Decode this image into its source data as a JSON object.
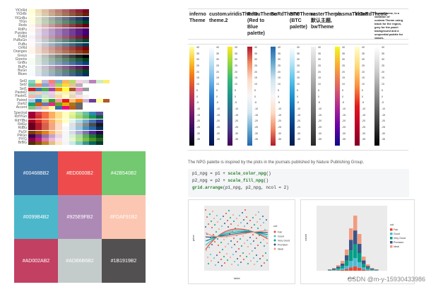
{
  "palettes": {
    "sequential": [
      "YlOrRd",
      "YlOrBr",
      "YlGnBu",
      "YlGn",
      "Reds",
      "RdPu",
      "Purples",
      "PuRd",
      "PuBuGn",
      "PuBu",
      "OrRd",
      "Oranges",
      "Greys",
      "Greens",
      "GnBu",
      "BuPu",
      "BuGn",
      "Blues"
    ],
    "qualitative": [
      "Set3",
      "Set2",
      "Set1",
      "Pastel2",
      "Pastel1",
      "Paired",
      "Dark2",
      "Accent"
    ],
    "diverging": [
      "Spectral",
      "RdYlGn",
      "RdYlBu",
      "RdGy",
      "RdBu",
      "PuOr",
      "PRGn",
      "PiYG",
      "BrBG"
    ]
  },
  "swatches": [
    {
      "label": "#00468BB2",
      "color": "#3d6fa3"
    },
    {
      "label": "#ED0000B2",
      "color": "#ee4c4c"
    },
    {
      "label": "#42B540B2",
      "color": "#72c970"
    },
    {
      "label": "#0099B4B2",
      "color": "#4cb7ca"
    },
    {
      "label": "#925E9FB2",
      "color": "#ad8ab6"
    },
    {
      "label": "#FDAF91B2",
      "color": "#fcc7b2"
    },
    {
      "label": "#AD002AB2",
      "color": "#c24062"
    },
    {
      "label": "#ADB6B6B2",
      "color": "#c4cbcb"
    },
    {
      "label": "#1B1919B2",
      "color": "#525050"
    }
  ],
  "themes": [
    {
      "name": "inferno Theme",
      "colors": [
        "#fcffa4",
        "#f9c932",
        "#f57d15",
        "#d44842",
        "#9f2a63",
        "#65156e",
        "#280b54",
        "#000004"
      ]
    },
    {
      "name": "custom. theme.2",
      "colors": [
        "#ffffff",
        "#bde0f5",
        "#72b7e8",
        "#2e7fd0",
        "#1a4fa8",
        "#0a2a7a",
        "#041550"
      ]
    },
    {
      "name": "viridisTheme",
      "colors": [
        "#fde725",
        "#90d743",
        "#35b779",
        "#21918c",
        "#31688e",
        "#443983",
        "#440154"
      ]
    },
    {
      "name": "RdBuTheme (Red to Blue palette)",
      "colors": [
        "#b2182b",
        "#ef8a62",
        "#fddbc7",
        "#f7f7f7",
        "#d1e5f0",
        "#67a9cf",
        "#2166ac"
      ]
    },
    {
      "name": "BuRdTheme",
      "colors": [
        "#2166ac",
        "#67a9cf",
        "#d1e5f0",
        "#f7f7f7",
        "#fddbc7",
        "#ef8a62",
        "#b2182b"
      ]
    },
    {
      "name": "BTCTheme (BTC palette)",
      "colors": [
        "#ffffff",
        "#b8e5f5",
        "#5cc3ea",
        "#1e95d0",
        "#0c5fa6",
        "#06357a",
        "#001b4d"
      ]
    },
    {
      "name": "rasterTheme默认主题, bwTheme",
      "colors": [
        "#f0f0f0",
        "#c8c8c8",
        "#a0a0a0",
        "#787878",
        "#505050",
        "#282828"
      ]
    },
    {
      "name": "plasmaTheme",
      "colors": [
        "#f0f921",
        "#fca636",
        "#e16462",
        "#b12a90",
        "#6a00a8",
        "#0d0887"
      ]
    },
    {
      "name": "YlOrRdTheme",
      "colors": [
        "#ffffcc",
        "#fed976",
        "#fd8d3c",
        "#e31a1c",
        "#bd0026",
        "#800026"
      ]
    },
    {
      "name": "streamTheme, is a variation of custom.Theme using black for the region, grey for the panel background and a sequential palette for values.",
      "colors": [
        "#ffffff",
        "#cccccc",
        "#888888",
        "#444444",
        "#000000"
      ]
    }
  ],
  "tick_labels": [
    "40",
    "35",
    "30",
    "25",
    "20",
    "15",
    "10",
    "5",
    "0",
    "-5",
    "-10",
    "-15",
    "-20",
    "-25",
    "-30",
    "-35"
  ],
  "caption": "The NPG palette is inspired by the plots in the journals published by Nature Publishing Group.",
  "code_lines": [
    "p1_npg = p1 + scale_color_npg()",
    "p2_npg = p2 + scale_fill_npg()",
    "grid.arrange(p1_npg, p2_npg, ncol = 2)"
  ],
  "plot1": {
    "legend_title": "cut",
    "legend": [
      "Fair",
      "Good",
      "Very Good",
      "Premium",
      "Ideal"
    ],
    "xlabel": "table",
    "ylabel": "price"
  },
  "plot2": {
    "legend_title": "cut",
    "legend": [
      "Fair",
      "Good",
      "Very Good",
      "Premium",
      "Ideal"
    ],
    "xlabel": "depth",
    "ylabel": "count"
  },
  "npg_colors": [
    "#E64B35",
    "#4DBBD5",
    "#00A087",
    "#3C5488",
    "#F39B7F"
  ],
  "watermark": "CSDN @m-y-15930433986"
}
